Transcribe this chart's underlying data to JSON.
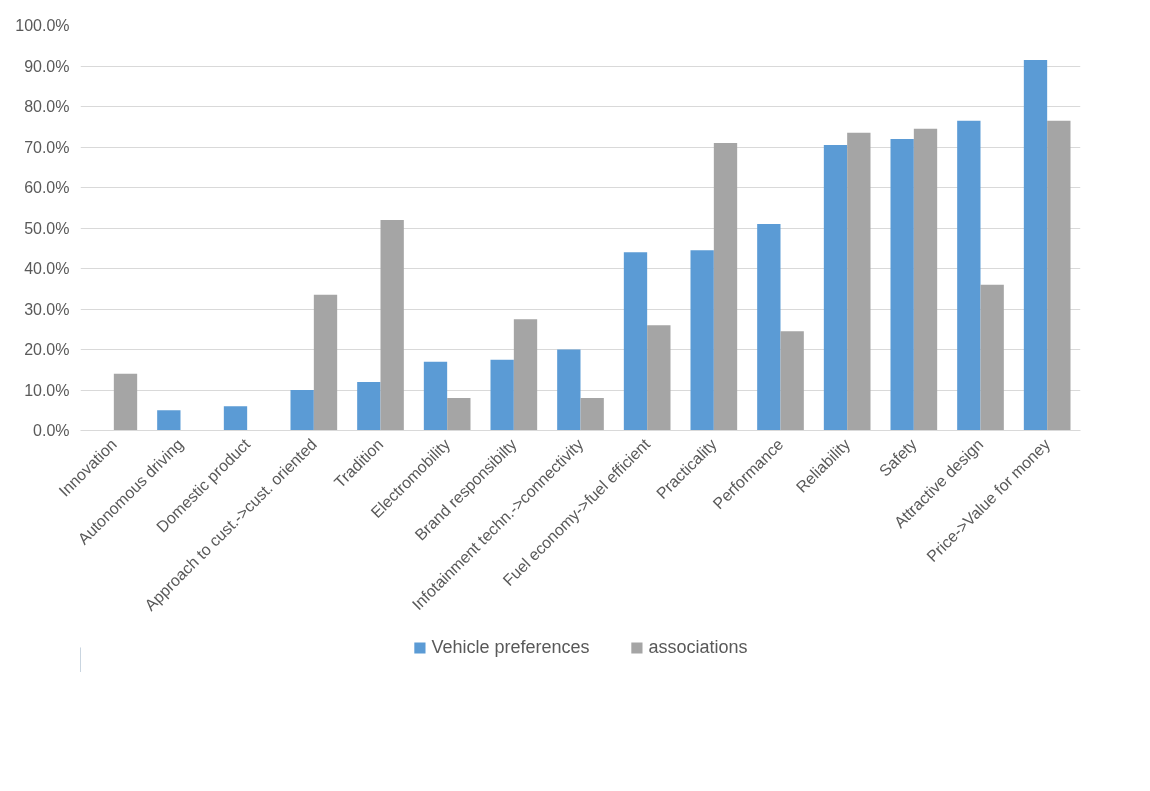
{
  "chart_data": {
    "type": "bar",
    "categories": [
      "Innovation",
      "Autonomous driving",
      "Domestic product",
      "Approach to cust.->cust. oriented",
      "Tradition",
      "Electromobility",
      "Brand responsibilty",
      "Infotainment techn.->connectivity",
      "Fuel economy->fuel efficient",
      "Practicality",
      "Performance",
      "Reliability",
      "Safety",
      "Attractive design",
      "Price->Value for money"
    ],
    "series": [
      {
        "name": "Vehicle preferences",
        "color": "#5b9bd5",
        "values": [
          0,
          5,
          6,
          10,
          12,
          17,
          17.5,
          20,
          44,
          44.5,
          51,
          70.5,
          72,
          76.5,
          91.5
        ]
      },
      {
        "name": "associations",
        "color": "#a5a5a5",
        "values": [
          14,
          0,
          0,
          33.5,
          52,
          8,
          27.5,
          8,
          26,
          71,
          24.5,
          73.5,
          74.5,
          36,
          76.5
        ]
      }
    ],
    "ylim": [
      0,
      100
    ],
    "yticks": [
      {
        "value": 0,
        "label": "0.0%"
      },
      {
        "value": 10,
        "label": "10.0%"
      },
      {
        "value": 20,
        "label": "20.0%"
      },
      {
        "value": 30,
        "label": "30.0%"
      },
      {
        "value": 40,
        "label": "40.0%"
      },
      {
        "value": 50,
        "label": "50.0%"
      },
      {
        "value": 60,
        "label": "60.0%"
      },
      {
        "value": 70,
        "label": "70.0%"
      },
      {
        "value": 80,
        "label": "80.0%"
      },
      {
        "value": 90,
        "label": "90.0%"
      },
      {
        "value": 100,
        "label": "100.0%"
      }
    ],
    "grid": "y",
    "legend": "bottom"
  }
}
